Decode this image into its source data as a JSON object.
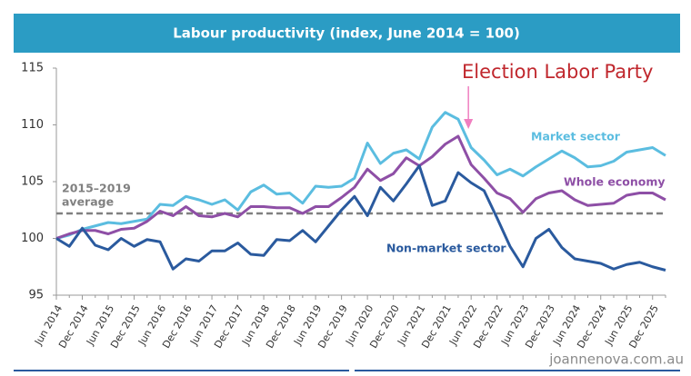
{
  "chart_data": {
    "type": "line",
    "title": "Labour productivity (index, June 2014 = 100)",
    "categories": [
      "Jun 2014",
      null,
      "Dec 2014",
      null,
      "Jun 2015",
      null,
      "Dec 2015",
      null,
      "Jun 2016",
      null,
      "Dec 2016",
      null,
      "Jun 2017",
      null,
      "Dec 2017",
      null,
      "Jun 2018",
      null,
      "Dec 2018",
      null,
      "Jun 2019",
      null,
      "Dec 2019",
      null,
      "Jun 2020",
      null,
      "Dec 2020",
      null,
      "Jun 2021",
      null,
      "Dec 2021",
      null,
      "Jun 2022",
      null,
      "Dec 2022",
      null,
      "Jun 2023",
      null,
      "Dec 2023",
      null,
      "Jun 2024",
      null,
      "Dec 2024",
      null,
      "Jun 2025",
      null,
      "Dec 2025",
      null
    ],
    "series": [
      {
        "name": "Market sector",
        "color": "#5bbde0",
        "values": [
          100,
          100.3,
          100.8,
          101.1,
          101.4,
          101.3,
          101.5,
          101.7,
          103.0,
          102.9,
          103.7,
          103.4,
          103.0,
          103.4,
          102.5,
          104.1,
          104.7,
          103.9,
          104.0,
          103.1,
          104.6,
          104.5,
          104.6,
          105.3,
          108.4,
          106.6,
          107.5,
          107.8,
          107.0,
          109.8,
          111.1,
          110.5,
          108.0,
          106.9,
          105.6,
          106.1,
          105.5,
          106.3,
          107.0,
          107.7,
          107.1,
          106.3,
          106.4,
          106.8,
          107.6,
          107.8,
          108.0,
          107.3
        ]
      },
      {
        "name": "Whole economy",
        "color": "#8e4fa6",
        "values": [
          100,
          100.4,
          100.7,
          100.7,
          100.4,
          100.8,
          100.9,
          101.5,
          102.4,
          102.0,
          102.8,
          102.0,
          101.9,
          102.2,
          101.9,
          102.8,
          102.8,
          102.7,
          102.7,
          102.2,
          102.8,
          102.8,
          103.6,
          104.5,
          106.1,
          105.1,
          105.7,
          107.1,
          106.4,
          107.2,
          108.3,
          109.0,
          106.5,
          105.3,
          104.0,
          103.5,
          102.3,
          103.5,
          104.0,
          104.2,
          103.4,
          102.9,
          103.0,
          103.1,
          103.8,
          104.0,
          104.0,
          103.4
        ]
      },
      {
        "name": "Non-market sector",
        "color": "#2a5a9e",
        "values": [
          100,
          99.3,
          100.9,
          99.4,
          99.0,
          100.0,
          99.3,
          99.9,
          99.7,
          97.3,
          98.2,
          98.0,
          98.9,
          98.9,
          99.6,
          98.6,
          98.5,
          99.9,
          99.8,
          100.7,
          99.7,
          101.1,
          102.5,
          103.7,
          102.0,
          104.5,
          103.3,
          104.8,
          106.4,
          102.9,
          103.3,
          105.8,
          104.9,
          104.2,
          101.8,
          99.3,
          97.5,
          100.0,
          100.8,
          99.2,
          98.2,
          98.0,
          97.8,
          97.3,
          97.7,
          97.9,
          97.5,
          97.2
        ]
      }
    ],
    "average_line": {
      "value": 102.2,
      "label": [
        "2015–2019",
        "average"
      ],
      "color": "#808080"
    },
    "annotation": {
      "text": "Election Labor Party",
      "color": "#c0272d",
      "arrow_color": "#f07fc0",
      "category_index": 32
    },
    "ylim": [
      95,
      115
    ],
    "yticks": [
      95,
      100,
      105,
      110,
      115
    ],
    "grid": false,
    "watermark": "joannenova.com.au"
  }
}
